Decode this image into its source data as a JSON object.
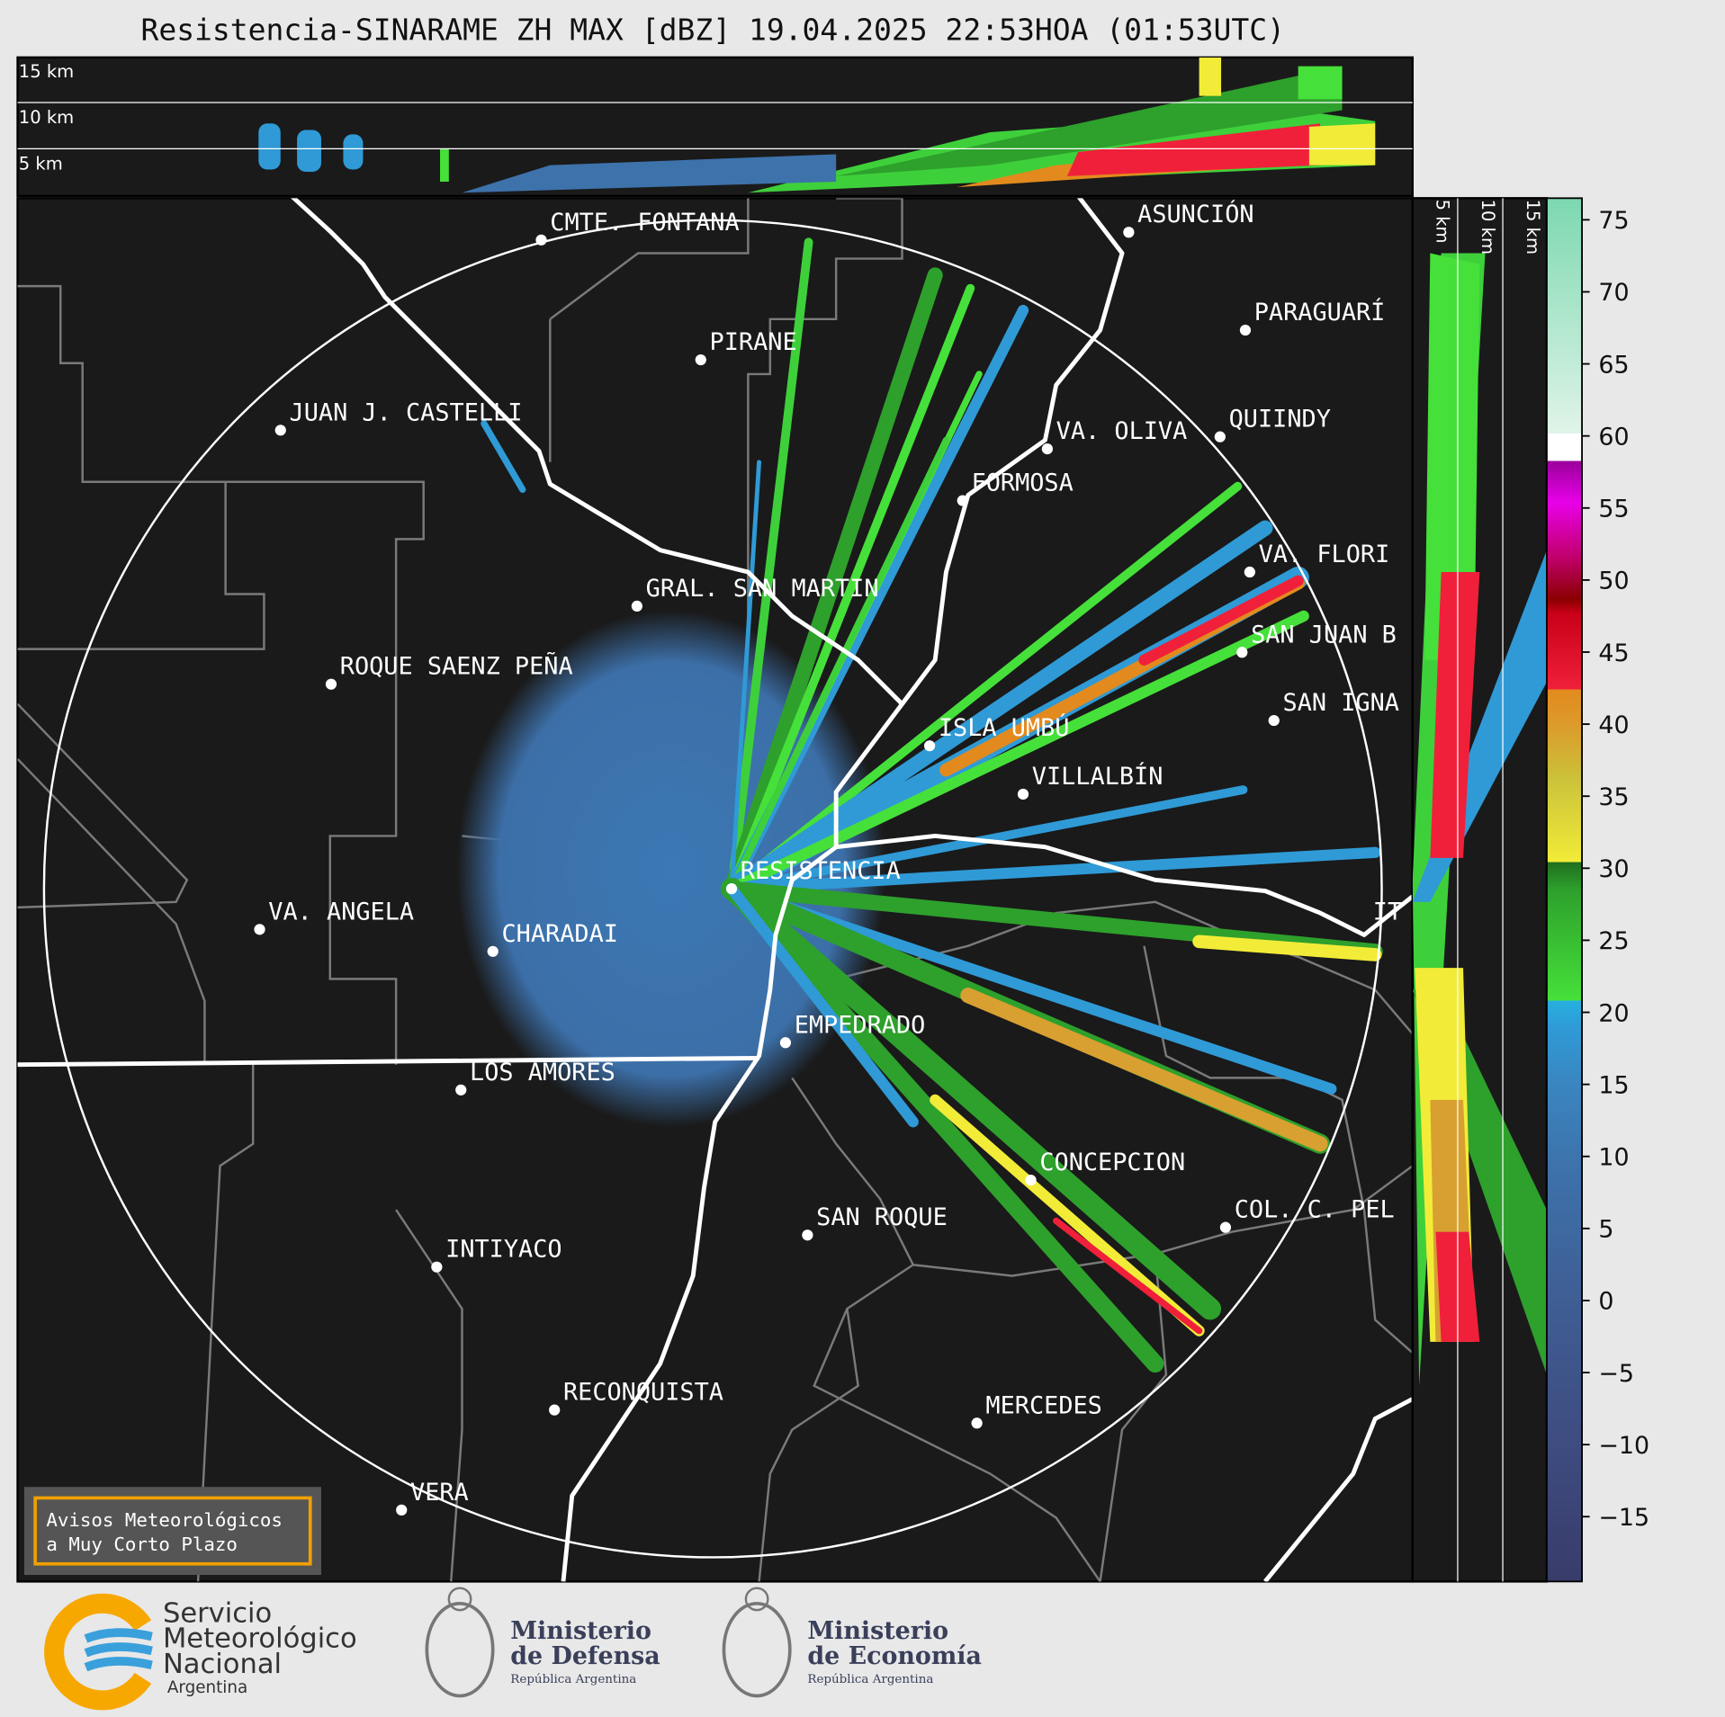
{
  "title": "Resistencia-SINARAME ZH MAX [dBZ] 19.04.2025 22:53HOA (01:53UTC)",
  "top_panel": {
    "labels": [
      "15 km",
      "10 km",
      "5 km"
    ]
  },
  "side_panel": {
    "labels": [
      "5 km",
      "10 km",
      "15 km"
    ]
  },
  "map": {
    "places": [
      "CMTE. FONTANA",
      "PIRANE",
      "ASUNCIÓN",
      "PARAGUARÍ",
      "JUAN J. CASTELLI",
      "VA. OLIVA",
      "QUIINDY",
      "FORMOSA",
      "VA. FLORI",
      "GRAL. SAN MARTIN",
      "SAN JUAN B",
      "ROQUE SAENZ PEÑA",
      "SAN IGNA",
      "ISLA UMBÚ",
      "VILLALBÍN",
      "RESISTENCIA",
      "IT",
      "VA. ANGELA",
      "CHARADAI",
      "EMPEDRADO",
      "LOS AMORES",
      "CONCEPCION",
      "COL. C. PEL",
      "SAN ROQUE",
      "INTIYACO",
      "RECONQUISTA",
      "MERCEDES",
      "VERA"
    ]
  },
  "colorbar": {
    "lim": [
      -19.5,
      76.5
    ],
    "ticks": [
      75,
      70,
      65,
      60,
      55,
      50,
      45,
      40,
      35,
      30,
      25,
      20,
      15,
      10,
      5,
      0,
      {
        "value": -5,
        "label": "−5"
      },
      {
        "value": -10,
        "label": "−10"
      },
      {
        "value": -15,
        "label": "−15"
      }
    ]
  },
  "notice": [
    "Avisos Meteorológicos",
    "a Muy Corto Plazo"
  ],
  "logos": [
    {
      "lines": [
        "Servicio",
        "Meteorológico",
        "Nacional",
        "Argentina"
      ]
    },
    {
      "lines": [
        "Ministerio",
        "de Defensa",
        "República Argentina"
      ]
    },
    {
      "lines": [
        "Ministerio",
        "de Economía",
        "República Argentina"
      ]
    }
  ]
}
